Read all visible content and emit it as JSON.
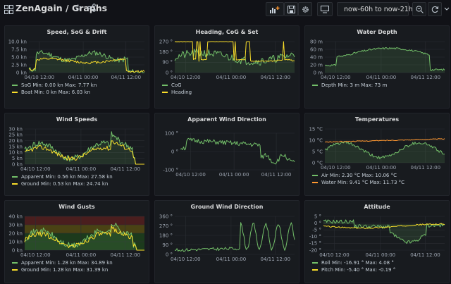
{
  "header": {
    "title": "ZenAgain / Graphs",
    "time_range": "now-60h to now-21h"
  },
  "colors": {
    "green": "#73bf69",
    "yellow": "#fade2a",
    "orange": "#ff9830",
    "red": "#f2495c",
    "grid": "#2a2d33"
  },
  "panels": [
    {
      "title": "Speed, SoG & Drift",
      "y_ticks": [
        "10.0 kn",
        "7.5 kn",
        "5.0 kn",
        "2.5 kn",
        "0 kn"
      ],
      "x_ticks": [
        "04/10 12:00",
        "04/11 00:00",
        "04/11 12:00"
      ],
      "legend": [
        {
          "label": "SoG  Min: 0.00 kn  Max: 7.77 kn",
          "color": "#73bf69"
        },
        {
          "label": "Boat  Min: 0 kn  Max: 6.03 kn",
          "color": "#fade2a"
        }
      ]
    },
    {
      "title": "Heading, CoG & Set",
      "y_ticks": [
        "270 °",
        "180 °",
        "90 °",
        "0 °"
      ],
      "x_ticks": [
        "04/10 12:00",
        "04/11 00:00",
        "04/11 12:00"
      ],
      "legend": [
        {
          "label": "CoG",
          "color": "#73bf69"
        },
        {
          "label": "Heading",
          "color": "#fade2a"
        }
      ]
    },
    {
      "title": "Water Depth",
      "y_ticks": [
        "80 m",
        "60 m",
        "40 m",
        "20 m",
        "0 m"
      ],
      "x_ticks": [
        "04/10 12:00",
        "04/11 00:00",
        "04/11 12:00"
      ],
      "legend": [
        {
          "label": "Depth  Min: 3 m  Max: 73 m",
          "color": "#73bf69"
        }
      ]
    },
    {
      "title": "Wind Speeds",
      "y_ticks": [
        "30 kn",
        "25 kn",
        "20 kn",
        "15 kn",
        "10 kn",
        "5 kn",
        "0 kn"
      ],
      "x_ticks": [
        "04/10 12:00",
        "04/11 00:00",
        "04/11 12:00"
      ],
      "legend": [
        {
          "label": "Apparent  Min: 0.56 kn  Max: 27.58 kn",
          "color": "#73bf69"
        },
        {
          "label": "Ground  Min: 0.53 kn  Max: 24.74 kn",
          "color": "#fade2a"
        }
      ]
    },
    {
      "title": "Apparent Wind Direction",
      "y_ticks": [
        "100 °",
        "0 °",
        "-100 °"
      ],
      "x_ticks": [
        "04/10 12:00",
        "04/11 00:00",
        "04/11 12:00"
      ],
      "legend": []
    },
    {
      "title": "Temperatures",
      "y_ticks": [
        "15 °C",
        "10 °C",
        "5 °C",
        "0 °C"
      ],
      "x_ticks": [
        "04/10 12:00",
        "04/11 00:00",
        "04/11 12:00"
      ],
      "legend": [
        {
          "label": "Air  Min: 2.30 °C  Max: 10.06 °C",
          "color": "#73bf69"
        },
        {
          "label": "Water  Min: 9.41 °C  Max: 11.73 °C",
          "color": "#ff9830"
        }
      ]
    },
    {
      "title": "Wind Gusts",
      "y_ticks": [
        "40 kn",
        "30 kn",
        "20 kn",
        "10 kn",
        "0 kn"
      ],
      "x_ticks": [
        "04/10 12:00",
        "04/11 00:00",
        "04/11 12:00"
      ],
      "legend": [
        {
          "label": "Apparent  Min: 1.28 kn  Max: 34.89 kn",
          "color": "#73bf69"
        },
        {
          "label": "Ground  Min: 1.28 kn  Max: 31.39 kn",
          "color": "#fade2a"
        }
      ]
    },
    {
      "title": "Ground Wind Direction",
      "y_ticks": [
        "360 °",
        "270 °",
        "180 °",
        "90 °",
        "0 °"
      ],
      "x_ticks": [
        "04/10 12:00",
        "04/11 00:00",
        "04/11 12:00"
      ],
      "legend": []
    },
    {
      "title": "Attitude",
      "y_ticks": [
        "5 °",
        "0 °",
        "-5 °",
        "-10 °",
        "-15 °",
        "-20 °"
      ],
      "x_ticks": [
        "04/10 12:00",
        "04/11 00:00",
        "04/11 12:00"
      ],
      "legend": [
        {
          "label": "Roll  Min: -16.91 °  Max: 4.08 °",
          "color": "#73bf69"
        },
        {
          "label": "Pitch  Min: -5.40 °  Max: -0.19 °",
          "color": "#fade2a"
        }
      ]
    }
  ]
}
